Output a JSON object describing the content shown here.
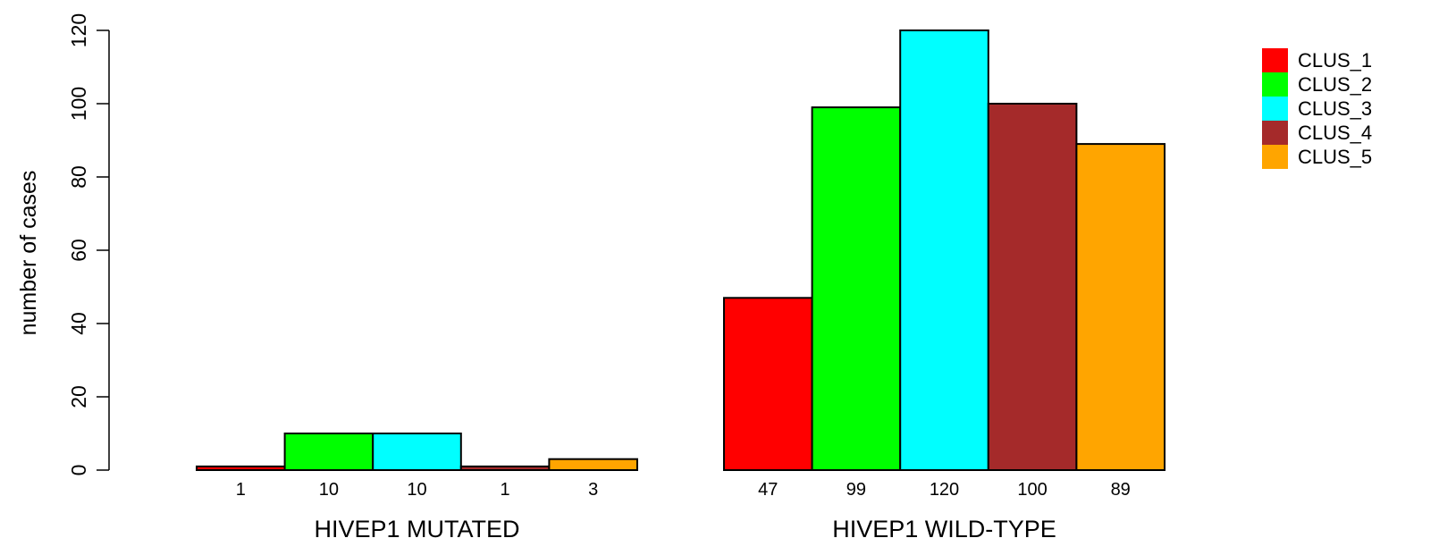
{
  "chart_data": {
    "type": "bar",
    "ylabel": "number of cases",
    "ylim": [
      0,
      120
    ],
    "yticks": [
      0,
      20,
      40,
      60,
      80,
      100,
      120
    ],
    "grid": false,
    "legend_position": "top-right",
    "series": [
      {
        "name": "CLUS_1",
        "color": "#ff0000"
      },
      {
        "name": "CLUS_2",
        "color": "#00ff00"
      },
      {
        "name": "CLUS_3",
        "color": "#00ffff"
      },
      {
        "name": "CLUS_4",
        "color": "#a52a2a"
      },
      {
        "name": "CLUS_5",
        "color": "#ffa500"
      }
    ],
    "groups": [
      {
        "label": "HIVEP1 MUTATED",
        "values": [
          1,
          10,
          10,
          1,
          3
        ]
      },
      {
        "label": "HIVEP1 WILD-TYPE",
        "values": [
          47,
          99,
          120,
          100,
          89
        ]
      }
    ]
  }
}
